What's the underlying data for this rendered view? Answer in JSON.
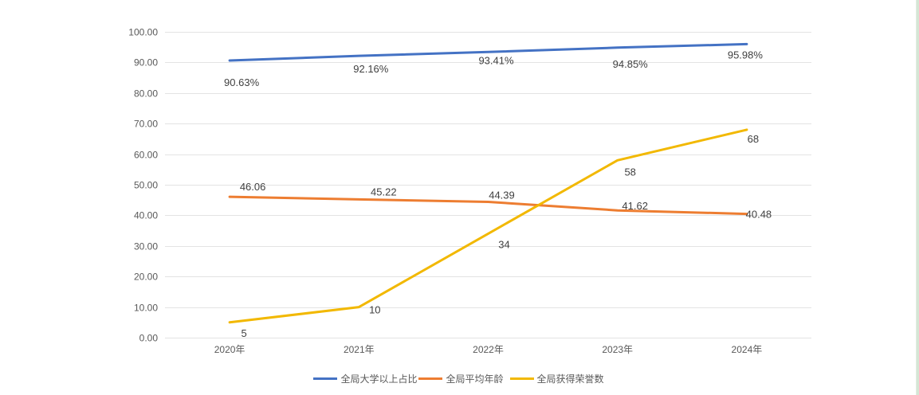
{
  "chart_data": {
    "type": "line",
    "title": "",
    "xlabel": "",
    "ylabel": "",
    "categories": [
      "2020年",
      "2021年",
      "2022年",
      "2023年",
      "2024年"
    ],
    "y_ticks": [
      "0.00",
      "10.00",
      "20.00",
      "30.00",
      "40.00",
      "50.00",
      "60.00",
      "70.00",
      "80.00",
      "90.00",
      "100.00"
    ],
    "ylim": [
      0,
      100
    ],
    "grid": true,
    "legend_position": "bottom",
    "series": [
      {
        "name": "全局大学以上占比",
        "color": "#4472C4",
        "values": [
          90.63,
          92.16,
          93.41,
          94.85,
          95.98
        ],
        "labels": [
          "90.63%",
          "92.16%",
          "93.41%",
          "94.85%",
          "95.98%"
        ]
      },
      {
        "name": "全局平均年龄",
        "color": "#ED7D31",
        "values": [
          46.06,
          45.22,
          44.39,
          41.62,
          40.48
        ],
        "labels": [
          "46.06",
          "45.22",
          "44.39",
          "41.62",
          "40.48"
        ]
      },
      {
        "name": "全局获得荣誉数",
        "color": "#F2B800",
        "values": [
          5,
          10,
          34,
          58,
          68
        ],
        "labels": [
          "5",
          "10",
          "34",
          "58",
          "68"
        ]
      }
    ]
  }
}
